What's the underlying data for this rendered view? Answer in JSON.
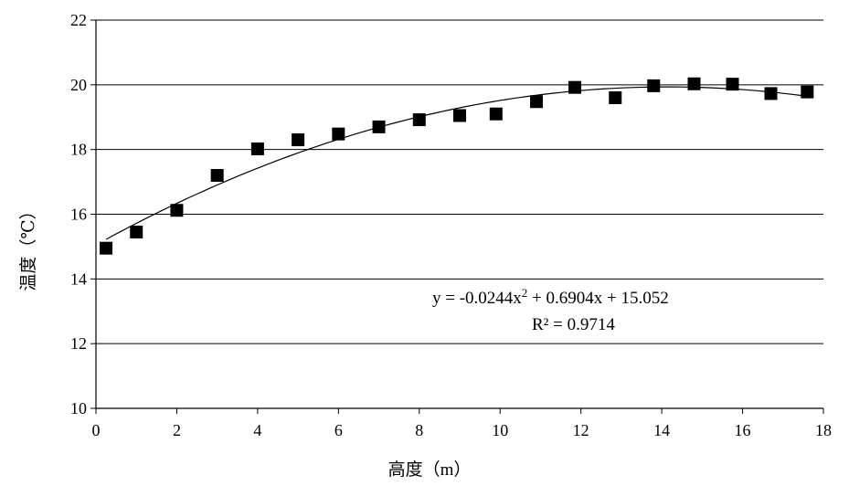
{
  "chart_data": {
    "type": "scatter",
    "title": "",
    "xlabel": "高度（m）",
    "ylabel": "温度（℃）",
    "xlim": [
      0,
      18
    ],
    "ylim": [
      10,
      22
    ],
    "xticks": [
      0,
      2,
      4,
      6,
      8,
      10,
      12,
      14,
      16,
      18
    ],
    "yticks": [
      10,
      12,
      14,
      16,
      18,
      20,
      22
    ],
    "grid": "horizontal",
    "legend": "none",
    "series": [
      {
        "x": [
          0.25,
          1.0,
          2.0,
          3.0,
          4.0,
          5.0,
          6.0,
          7.0,
          8.0,
          9.0,
          9.9,
          10.9,
          11.85,
          12.85,
          13.8,
          14.8,
          15.75,
          16.7,
          17.6
        ],
        "y": [
          14.95,
          15.45,
          16.12,
          17.2,
          18.02,
          18.3,
          18.48,
          18.7,
          18.92,
          19.05,
          19.1,
          19.48,
          19.92,
          19.6,
          19.97,
          20.03,
          20.02,
          19.73,
          19.78
        ]
      }
    ],
    "trendline": {
      "type": "polynomial",
      "coefficients": [
        -0.0244,
        0.6904,
        15.052
      ],
      "equation_prefix": "y = -0.0244x",
      "equation_sup": "2",
      "equation_suffix": " + 0.6904x + 15.052",
      "r2_text": "R² = 0.9714"
    },
    "colors": {
      "marker": "#000000",
      "grid": "#000000",
      "trendline": "#000000"
    }
  }
}
